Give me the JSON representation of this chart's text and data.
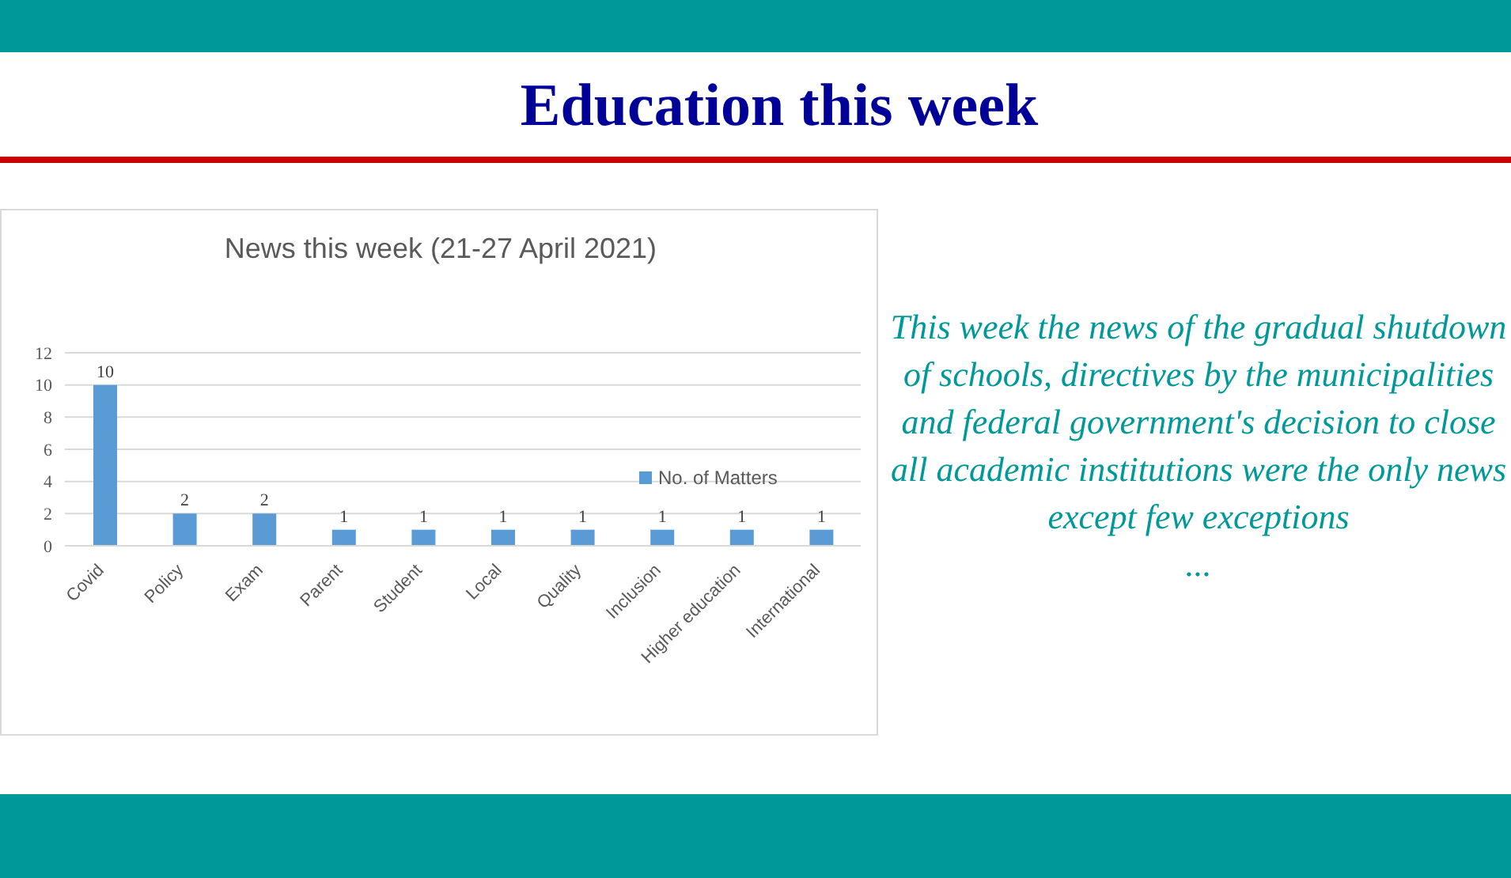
{
  "chart_data": {
    "type": "bar",
    "title": "Education this week",
    "subtitle": "News this week (21-27 April 2021)",
    "categories": [
      "Covid",
      "Policy",
      "Exam",
      "Parent",
      "Student",
      "Local",
      "Quality",
      "Inclusion",
      "Higher education",
      "International"
    ],
    "series": [
      {
        "name": "No. of Matters",
        "color": "#5b9bd5",
        "values": [
          10,
          2,
          2,
          1,
          1,
          1,
          1,
          1,
          1,
          1
        ]
      }
    ],
    "ylim": [
      0,
      12
    ],
    "yticks": [
      0,
      2,
      4,
      6,
      8,
      10,
      12
    ],
    "grid": "y",
    "legend": "right",
    "data_labels": true,
    "annotations": [
      "This week the news of the gradual shutdown of schools, directives by the municipalities and federal government's decision to close all academic institutions were the only news except few exceptions",
      "..."
    ]
  }
}
